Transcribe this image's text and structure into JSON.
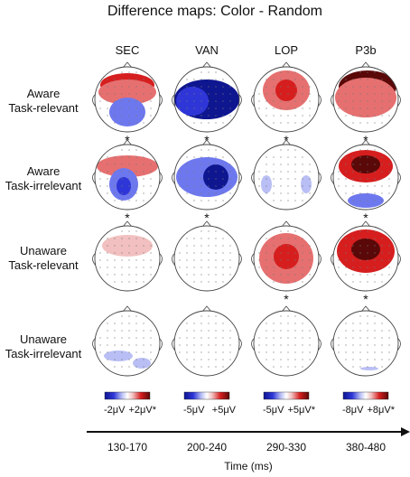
{
  "title": "Difference maps: Color - Random",
  "columns": [
    "SEC",
    "VAN",
    "LOP",
    "P3b"
  ],
  "rows": [
    {
      "line1": "Aware",
      "line2": "Task-relevant"
    },
    {
      "line1": "Aware",
      "line2": "Task-irrelevant"
    },
    {
      "line1": "Unaware",
      "line2": "Task-relevant"
    },
    {
      "line1": "Unaware",
      "line2": "Task-irrelevant"
    }
  ],
  "significance_marker": "*",
  "significant": [
    [
      true,
      true,
      true,
      true
    ],
    [
      true,
      true,
      false,
      true
    ],
    [
      false,
      false,
      true,
      true
    ],
    [
      false,
      false,
      false,
      false
    ]
  ],
  "maps": [
    [
      [
        {
          "t": "pos",
          "s": "strong",
          "x": 0,
          "y": -16,
          "rx": 30,
          "ry": 13
        },
        {
          "t": "pos",
          "s": "mid",
          "x": 0,
          "y": -8,
          "rx": 32,
          "ry": 14
        },
        {
          "t": "neg",
          "s": "strong",
          "x": 0,
          "y": 16,
          "rx": 12,
          "ry": 13
        },
        {
          "t": "neg",
          "s": "mid",
          "x": 0,
          "y": 14,
          "rx": 20,
          "ry": 16
        }
      ],
      [
        {
          "t": "neg",
          "s": "max",
          "x": 0,
          "y": 0,
          "rx": 36,
          "ry": 22
        },
        {
          "t": "neg",
          "s": "strong",
          "x": -16,
          "y": 2,
          "rx": 18,
          "ry": 16
        }
      ],
      [
        {
          "t": "pos",
          "s": "mid",
          "x": 0,
          "y": -10,
          "rx": 26,
          "ry": 22
        },
        {
          "t": "pos",
          "s": "strong",
          "x": 0,
          "y": -10,
          "rx": 12,
          "ry": 12
        }
      ],
      [
        {
          "t": "pos",
          "s": "max",
          "x": 2,
          "y": -14,
          "rx": 32,
          "ry": 18
        },
        {
          "t": "pos",
          "s": "mid",
          "x": 0,
          "y": -2,
          "rx": 34,
          "ry": 22
        }
      ]
    ],
    [
      [
        {
          "t": "pos",
          "s": "mid",
          "x": 0,
          "y": -12,
          "rx": 34,
          "ry": 12
        },
        {
          "t": "neg",
          "s": "mid",
          "x": -4,
          "y": 8,
          "rx": 16,
          "ry": 18
        },
        {
          "t": "neg",
          "s": "strong",
          "x": -4,
          "y": 10,
          "rx": 8,
          "ry": 10
        }
      ],
      [
        {
          "t": "neg",
          "s": "mid",
          "x": 0,
          "y": 0,
          "rx": 34,
          "ry": 22
        },
        {
          "t": "neg",
          "s": "max",
          "x": 10,
          "y": 0,
          "rx": 14,
          "ry": 14
        }
      ],
      [
        {
          "t": "neg",
          "s": "faint",
          "x": -22,
          "y": 8,
          "rx": 6,
          "ry": 10
        },
        {
          "t": "neg",
          "s": "faint",
          "x": 22,
          "y": 8,
          "rx": 6,
          "ry": 10
        }
      ],
      [
        {
          "t": "pos",
          "s": "strong",
          "x": 0,
          "y": -12,
          "rx": 30,
          "ry": 18
        },
        {
          "t": "pos",
          "s": "max",
          "x": 0,
          "y": -14,
          "rx": 16,
          "ry": 10
        },
        {
          "t": "neg",
          "s": "mid",
          "x": 0,
          "y": 26,
          "rx": 20,
          "ry": 8
        }
      ]
    ],
    [
      [
        {
          "t": "pos",
          "s": "faint",
          "x": 0,
          "y": -14,
          "rx": 28,
          "ry": 12
        }
      ],
      [],
      [
        {
          "t": "pos",
          "s": "mid",
          "x": 0,
          "y": 0,
          "rx": 30,
          "ry": 28
        },
        {
          "t": "pos",
          "s": "strong",
          "x": 0,
          "y": -2,
          "rx": 14,
          "ry": 14
        }
      ],
      [
        {
          "t": "pos",
          "s": "strong",
          "x": 0,
          "y": -8,
          "rx": 32,
          "ry": 24
        },
        {
          "t": "pos",
          "s": "max",
          "x": 0,
          "y": -10,
          "rx": 16,
          "ry": 12
        }
      ]
    ],
    [
      [
        {
          "t": "neg",
          "s": "faint",
          "x": -10,
          "y": 14,
          "rx": 16,
          "ry": 6
        },
        {
          "t": "neg",
          "s": "faint",
          "x": 16,
          "y": 22,
          "rx": 10,
          "ry": 6
        }
      ],
      [],
      [],
      [
        {
          "t": "neg",
          "s": "faint",
          "x": 4,
          "y": 28,
          "rx": 10,
          "ry": 2
        }
      ]
    ]
  ],
  "scales": [
    {
      "min": "-2μV",
      "max": "+2μV*"
    },
    {
      "min": "-5μV",
      "max": "+5μV"
    },
    {
      "min": "-5μV",
      "max": "+5μV*"
    },
    {
      "min": "-8μV",
      "max": "+8μV*"
    }
  ],
  "time_ticks": [
    "130-170",
    "200-240",
    "290-330",
    "380-480"
  ],
  "time_label": "Time (ms)",
  "colors": {
    "neg_faint": "#b9bff5",
    "neg_mid": "#6e78ee",
    "neg_strong": "#2e36d8",
    "neg_max": "#0e1690",
    "pos_faint": "#f2c0c0",
    "pos_mid": "#e67070",
    "pos_strong": "#d61e1e",
    "pos_max": "#5a0808",
    "outline": "#444444",
    "electrode": "#777777"
  }
}
